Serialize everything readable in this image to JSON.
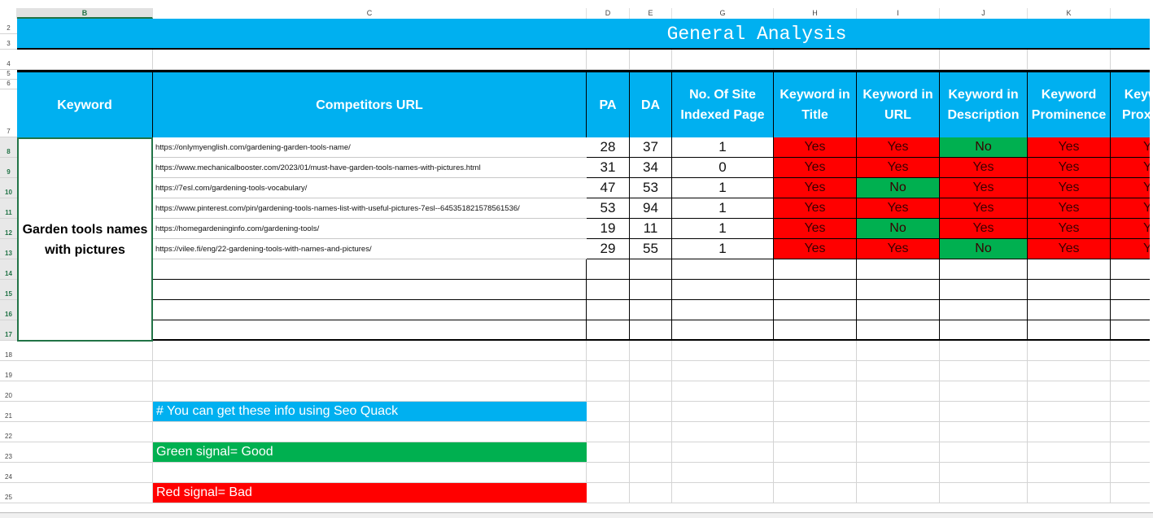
{
  "colors": {
    "header_blue": "#00b0f0",
    "bad_red": "#ff0000",
    "good_green": "#00b050"
  },
  "column_headers": [
    "B",
    "C",
    "D",
    "E",
    "G",
    "H",
    "I",
    "J",
    "K",
    ""
  ],
  "row_numbers": [
    "2",
    "3",
    "4",
    "5",
    "6",
    "7",
    "8",
    "9",
    "10",
    "11",
    "12",
    "13",
    "14",
    "15",
    "16",
    "17",
    "18",
    "19",
    "20",
    "21",
    "22",
    "23",
    "24",
    "25"
  ],
  "title": "General Analysis",
  "table": {
    "headers": [
      "Keyword",
      "Competitors URL",
      "PA",
      "DA",
      "No. Of Site Indexed Page",
      "Keyword in Title",
      "Keyword in URL",
      "Keyword in Description",
      "Keyword Prominence",
      "Keyword Proximity"
    ],
    "keyword": "Garden tools names with pictures",
    "rows": [
      {
        "url": "https://onlymyenglish.com/gardening-garden-tools-name/",
        "pa": "28",
        "da": "37",
        "indexed": "1",
        "flags": [
          "Yes",
          "Yes",
          "No",
          "Yes",
          "Yes"
        ]
      },
      {
        "url": "https://www.mechanicalbooster.com/2023/01/must-have-garden-tools-names-with-pictures.html",
        "pa": "31",
        "da": "34",
        "indexed": "0",
        "flags": [
          "Yes",
          "Yes",
          "Yes",
          "Yes",
          "Yes"
        ]
      },
      {
        "url": "https://7esl.com/gardening-tools-vocabulary/",
        "pa": "47",
        "da": "53",
        "indexed": "1",
        "flags": [
          "Yes",
          "No",
          "Yes",
          "Yes",
          "Yes"
        ]
      },
      {
        "url": "https://www.pinterest.com/pin/gardening-tools-names-list-with-useful-pictures-7esl--645351821578561536/",
        "pa": "53",
        "da": "94",
        "indexed": "1",
        "flags": [
          "Yes",
          "Yes",
          "Yes",
          "Yes",
          "Yes"
        ]
      },
      {
        "url": "https://homegardeninginfo.com/gardening-tools/",
        "pa": "19",
        "da": "11",
        "indexed": "1",
        "flags": [
          "Yes",
          "No",
          "Yes",
          "Yes",
          "Yes"
        ]
      },
      {
        "url": "https://vilee.fi/eng/22-gardening-tools-with-names-and-pictures/",
        "pa": "29",
        "da": "55",
        "indexed": "1",
        "flags": [
          "Yes",
          "Yes",
          "No",
          "Yes",
          "Yes"
        ]
      }
    ]
  },
  "notes": {
    "info": "# You can get these info using Seo Quack",
    "green": "Green signal= Good",
    "red": "Red signal= Bad"
  }
}
